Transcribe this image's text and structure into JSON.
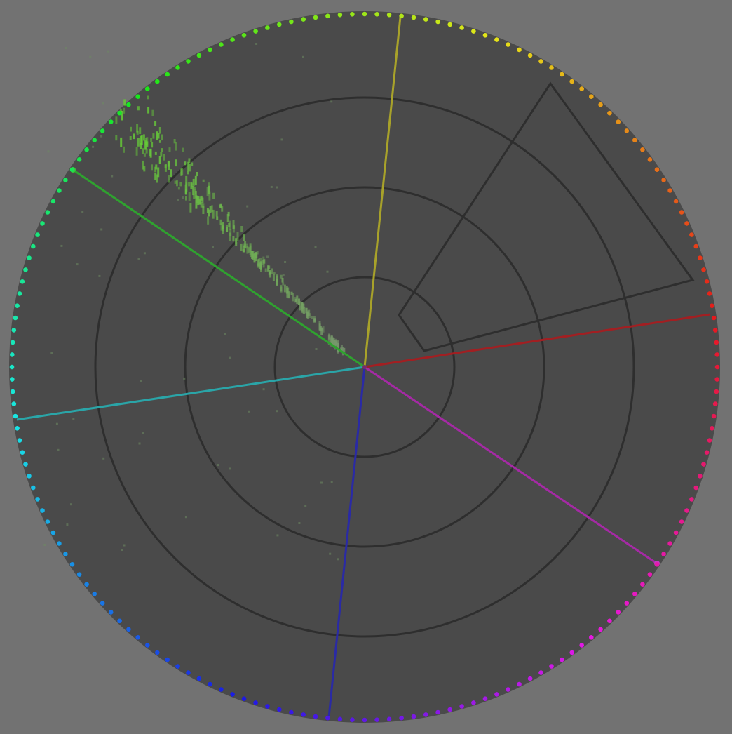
{
  "scope": {
    "type": "vectorscope",
    "graticule_rings": 4,
    "skin_tone_line": true,
    "rim_markers": "hue-dots",
    "colors": {
      "background": "#727272",
      "scope_face": "#4a4a4a",
      "graticule": "#2e2e2e",
      "trace": "#8fbf6a"
    }
  },
  "targets": [
    {
      "name": "red",
      "color": "#a21f22"
    },
    {
      "name": "yellow",
      "color": "#a8a22a"
    },
    {
      "name": "green",
      "color": "#2fa22f"
    },
    {
      "name": "cyan",
      "color": "#2aa5a8"
    },
    {
      "name": "blue",
      "color": "#2a2aa5"
    },
    {
      "name": "magenta",
      "color": "#a52aa5"
    }
  ]
}
